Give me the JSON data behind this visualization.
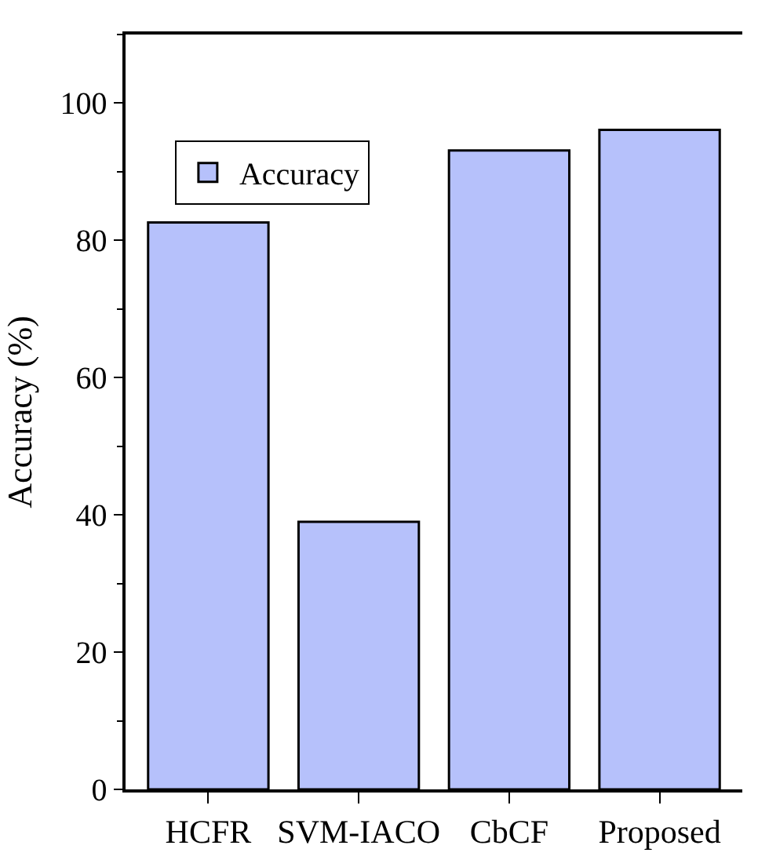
{
  "chart_data": {
    "type": "bar",
    "ylabel": "Accuracy (%)",
    "categories": [
      "HCFR",
      "SVM-IACO",
      "CbCF",
      "Proposed"
    ],
    "series": [
      {
        "name": "Accuracy",
        "color": "#b6c1fb",
        "values": [
          82.6,
          39,
          93.1,
          96.1
        ]
      }
    ],
    "ylim": [
      0,
      110
    ],
    "yticks": [
      0,
      20,
      40,
      60,
      80,
      100
    ],
    "legend": "top left",
    "grid": false
  }
}
